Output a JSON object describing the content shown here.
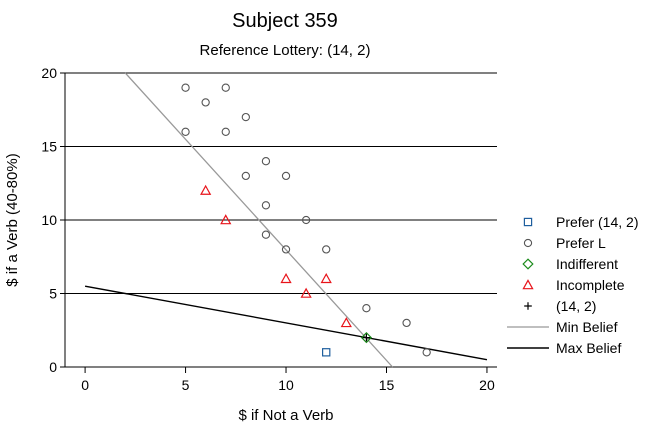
{
  "chart_data": {
    "type": "scatter",
    "title": "Subject 359",
    "subtitle": "Reference Lottery: (14, 2)",
    "xlabel": "$ if Not a Verb",
    "ylabel": "$ if a Verb (40-80%)",
    "xlim": [
      -1,
      20.5
    ],
    "ylim": [
      0,
      20
    ],
    "x_ticks": [
      0,
      5,
      10,
      15,
      20
    ],
    "y_ticks": [
      0,
      5,
      10,
      15,
      20
    ],
    "grid": "horizontal",
    "legend_position": "right",
    "series": [
      {
        "name": "Prefer (14, 2)",
        "marker": "square",
        "color": "#1f5f9e",
        "points": [
          [
            12,
            1
          ]
        ]
      },
      {
        "name": "Prefer L",
        "marker": "circle",
        "color": "#555555",
        "points": [
          [
            5,
            19
          ],
          [
            7,
            19
          ],
          [
            6,
            18
          ],
          [
            8,
            17
          ],
          [
            5,
            16
          ],
          [
            7,
            16
          ],
          [
            9,
            14
          ],
          [
            8,
            13
          ],
          [
            10,
            13
          ],
          [
            9,
            11
          ],
          [
            11,
            10
          ],
          [
            9,
            9
          ],
          [
            10,
            8
          ],
          [
            12,
            8
          ],
          [
            14,
            4
          ],
          [
            16,
            3
          ],
          [
            17,
            1
          ]
        ]
      },
      {
        "name": "Indifferent",
        "marker": "diamond",
        "color": "#1a8a1a",
        "points": [
          [
            14,
            2
          ]
        ]
      },
      {
        "name": "Incomplete",
        "marker": "triangle",
        "color": "#e8141b",
        "points": [
          [
            6,
            12
          ],
          [
            7,
            10
          ],
          [
            10,
            6
          ],
          [
            12,
            6
          ],
          [
            11,
            5
          ],
          [
            13,
            3
          ]
        ]
      },
      {
        "name": "(14, 2)",
        "marker": "plus",
        "color": "#000000",
        "points": [
          [
            14,
            2
          ]
        ]
      }
    ],
    "lines": [
      {
        "name": "Min Belief",
        "color": "#999999",
        "points": [
          [
            2,
            20
          ],
          [
            15.3,
            0
          ]
        ]
      },
      {
        "name": "Max Belief",
        "color": "#000000",
        "points": [
          [
            0,
            5.5
          ],
          [
            20,
            0.5
          ]
        ]
      }
    ]
  }
}
